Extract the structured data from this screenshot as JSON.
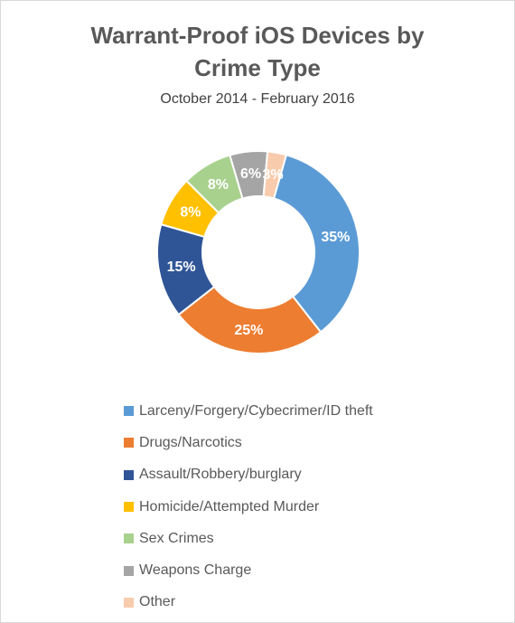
{
  "chart_data": {
    "type": "pie",
    "title": "Warrant-Proof iOS Devices by Crime Type",
    "title_lines": [
      "Warrant-Proof iOS Devices by",
      "Crime Type"
    ],
    "subtitle": "October 2014 - February 2016",
    "donut": true,
    "legend_position": "bottom",
    "slices": [
      {
        "name": "Larceny/Forgery/Cybecrimer/ID theft",
        "value": 35,
        "label": "35%",
        "color": "#5b9bd5"
      },
      {
        "name": "Drugs/Narcotics",
        "value": 25,
        "label": "25%",
        "color": "#ed7d31"
      },
      {
        "name": "Assault/Robbery/burglary",
        "value": 15,
        "label": "15%",
        "color": "#2f5597"
      },
      {
        "name": "Homicide/Attempted Murder",
        "value": 8,
        "label": "8%",
        "color": "#ffc000"
      },
      {
        "name": "Sex Crimes",
        "value": 8,
        "label": "8%",
        "color": "#a9d18e"
      },
      {
        "name": "Weapons Charge",
        "value": 6,
        "label": "6%",
        "color": "#a5a5a5"
      },
      {
        "name": "Other",
        "value": 3,
        "label": "3%",
        "color": "#f8cbad"
      }
    ]
  }
}
